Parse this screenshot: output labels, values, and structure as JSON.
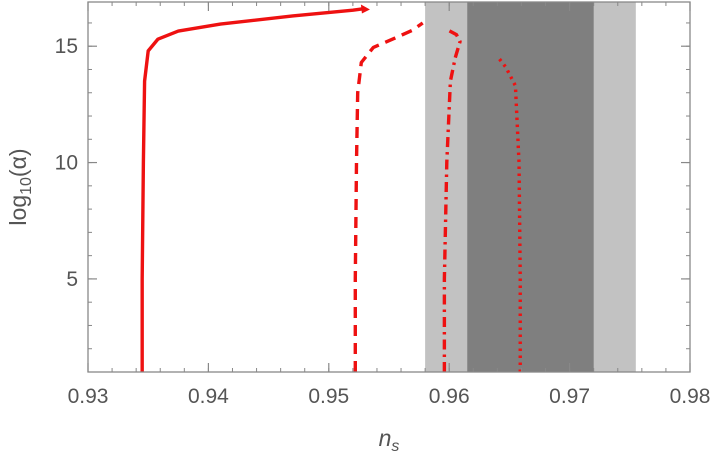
{
  "chart_data": {
    "type": "line",
    "xlabel": "n",
    "xlabel_sub": "s",
    "ylabel_prefix": "log",
    "ylabel_sub": "10",
    "ylabel_suffix": "(α)",
    "xlim": [
      0.93,
      0.98
    ],
    "ylim": [
      1,
      16.9
    ],
    "x_ticks": [
      "0.93",
      "0.94",
      "0.95",
      "0.96",
      "0.97",
      "0.98"
    ],
    "x_tick_values": [
      0.93,
      0.94,
      0.95,
      0.96,
      0.97,
      0.98
    ],
    "y_ticks": [
      "5",
      "10",
      "15"
    ],
    "y_tick_values": [
      5,
      10,
      15
    ],
    "grid": false,
    "bands": [
      {
        "x_range": [
          0.958,
          0.9755
        ],
        "color": "#c2c2c2"
      },
      {
        "x_range": [
          0.9615,
          0.972
        ],
        "color": "#7f7f7f"
      }
    ],
    "series": [
      {
        "style": "solid",
        "color": "#ee1111",
        "x": [
          0.9345,
          0.9345,
          0.9346,
          0.9347,
          0.935,
          0.9358,
          0.9375,
          0.941,
          0.947,
          0.952,
          0.953
        ],
        "y": [
          1.0,
          5.0,
          10.0,
          13.5,
          14.8,
          15.3,
          15.65,
          15.95,
          16.3,
          16.55,
          16.62
        ]
      },
      {
        "style": "dashed",
        "color": "#ee1111",
        "x": [
          0.9522,
          0.9522,
          0.9523,
          0.9524,
          0.9527,
          0.9537,
          0.9555,
          0.957,
          0.9578
        ],
        "y": [
          1.0,
          5.0,
          10.0,
          13.0,
          14.3,
          14.95,
          15.35,
          15.7,
          16.0
        ]
      },
      {
        "style": "dashdot",
        "color": "#ee1111",
        "x": [
          0.9596,
          0.9596,
          0.9598,
          0.9601,
          0.9605,
          0.9609,
          0.9606,
          0.9597
        ],
        "y": [
          1.0,
          5.0,
          10.0,
          13.5,
          14.5,
          15.2,
          15.5,
          15.75
        ]
      },
      {
        "style": "dotted",
        "color": "#ee1111",
        "x": [
          0.9659,
          0.9659,
          0.9658,
          0.9655,
          0.9647,
          0.9641
        ],
        "y": [
          1.0,
          5.0,
          10.0,
          13.3,
          14.1,
          14.5
        ]
      }
    ]
  }
}
